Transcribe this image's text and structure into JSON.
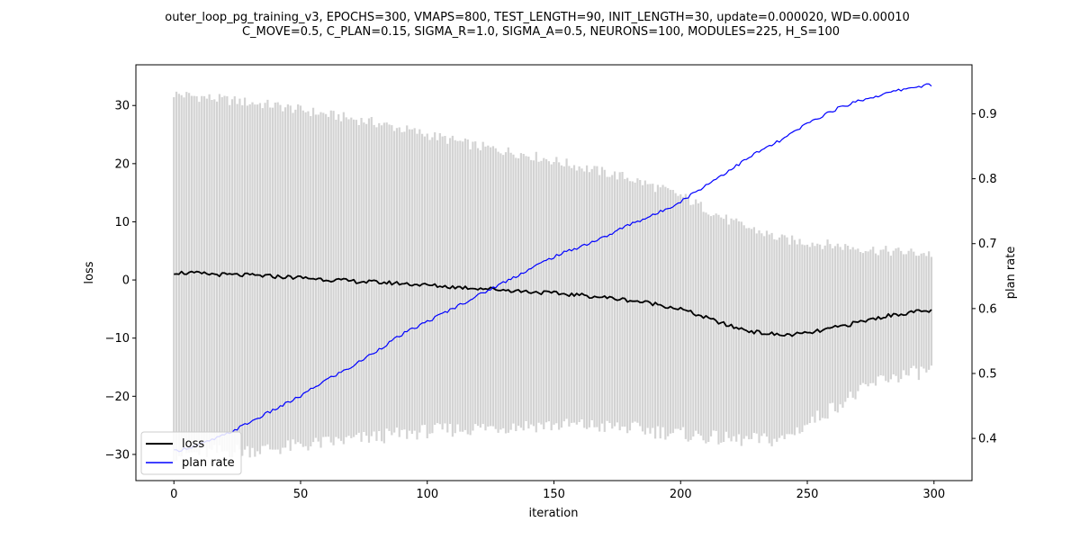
{
  "chart_data": {
    "type": "line",
    "title_lines": [
      "outer_loop_pg_training_v3, EPOCHS=300, VMAPS=800, TEST_LENGTH=90, INIT_LENGTH=30, update=0.000020, WD=0.00010",
      "C_MOVE=0.5, C_PLAN=0.15, SIGMA_R=1.0, SIGMA_A=0.5, NEURONS=100, MODULES=225, H_S=100"
    ],
    "xlabel": "iteration",
    "ylabel_left": "loss",
    "ylabel_right": "plan rate",
    "xlim": [
      -15,
      315
    ],
    "ylim_left": [
      -34.5,
      37
    ],
    "ylim_right": [
      0.335,
      0.9755
    ],
    "xticks": [
      0,
      50,
      100,
      150,
      200,
      250,
      300
    ],
    "yticks_left": [
      -30,
      -20,
      -10,
      0,
      10,
      20,
      30
    ],
    "yticks_right": [
      0.4,
      0.5,
      0.6,
      0.7,
      0.8,
      0.9
    ],
    "x_max_iteration": 299,
    "series": [
      {
        "name": "loss",
        "axis": "left",
        "color": "#000000",
        "x": [
          0,
          10,
          20,
          30,
          40,
          50,
          60,
          70,
          80,
          90,
          100,
          110,
          120,
          130,
          140,
          150,
          160,
          170,
          180,
          190,
          200,
          210,
          220,
          230,
          240,
          250,
          260,
          270,
          280,
          290,
          299
        ],
        "y": [
          1.3,
          1.1,
          0.9,
          0.8,
          0.6,
          0.4,
          0.1,
          -0.2,
          -0.4,
          -0.6,
          -0.9,
          -1.2,
          -1.4,
          -1.7,
          -2.0,
          -2.3,
          -2.6,
          -3.0,
          -3.5,
          -4.1,
          -5.0,
          -6.5,
          -8.0,
          -9.0,
          -9.5,
          -9.2,
          -8.3,
          -7.3,
          -6.3,
          -5.6,
          -5.3
        ]
      },
      {
        "name": "plan rate",
        "axis": "right",
        "color": "#0000ff",
        "x": [
          0,
          10,
          20,
          30,
          40,
          50,
          60,
          70,
          80,
          90,
          100,
          110,
          120,
          130,
          140,
          150,
          160,
          170,
          180,
          190,
          200,
          210,
          220,
          230,
          240,
          250,
          260,
          270,
          280,
          290,
          299
        ],
        "y": [
          0.38,
          0.39,
          0.405,
          0.425,
          0.445,
          0.465,
          0.49,
          0.51,
          0.535,
          0.56,
          0.58,
          0.6,
          0.62,
          0.64,
          0.66,
          0.68,
          0.695,
          0.71,
          0.73,
          0.745,
          0.765,
          0.79,
          0.815,
          0.84,
          0.86,
          0.885,
          0.905,
          0.92,
          0.93,
          0.94,
          0.945
        ]
      }
    ],
    "error_band": {
      "name": "loss spread",
      "axis": "left",
      "color": "#d3d3d3",
      "x": [
        0,
        20,
        40,
        60,
        80,
        100,
        120,
        140,
        160,
        180,
        200,
        220,
        240,
        260,
        280,
        299
      ],
      "upper": [
        32,
        31,
        30,
        28.5,
        27,
        25,
        23,
        21.5,
        19.5,
        17.5,
        14.5,
        10,
        7,
        6,
        5,
        4.5
      ],
      "lower": [
        -30,
        -29.5,
        -29,
        -28,
        -27,
        -26,
        -25.5,
        -25,
        -25,
        -25.5,
        -26.5,
        -27.5,
        -27.5,
        -22,
        -17,
        -15.5
      ]
    },
    "legend": {
      "location": "lower-left",
      "entries": [
        "loss",
        "plan rate"
      ]
    }
  }
}
